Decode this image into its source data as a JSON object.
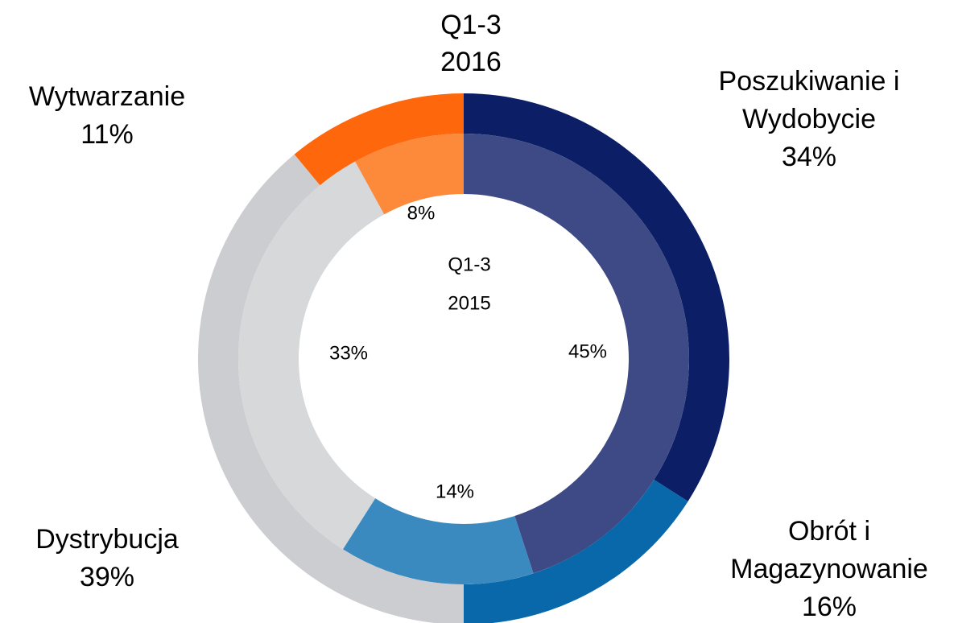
{
  "chart_data": {
    "type": "pie",
    "categories": [
      [
        "Poszukiwanie i",
        "Wydobycie"
      ],
      [
        "Obrót i",
        "Magazynowanie"
      ],
      [
        "Dystrybucja"
      ],
      [
        "Wytwarzanie"
      ]
    ],
    "series": [
      {
        "name": [
          "Q1-3",
          "2016"
        ],
        "values": [
          34,
          16,
          39,
          11
        ],
        "value_labels": [
          "34%",
          "16%",
          "39%",
          "11%"
        ],
        "colors": [
          "#0c1f66",
          "#0868aa",
          "#cccdd0",
          "#ff670d"
        ]
      },
      {
        "name": [
          "Q1-3",
          "2015"
        ],
        "values": [
          45,
          14,
          33,
          8
        ],
        "value_labels": [
          "45%",
          "14%",
          "33%",
          "8%"
        ],
        "colors": [
          "#3d4a85",
          "#3a89bf",
          "#d7d8da",
          "#fd893b"
        ]
      }
    ]
  }
}
